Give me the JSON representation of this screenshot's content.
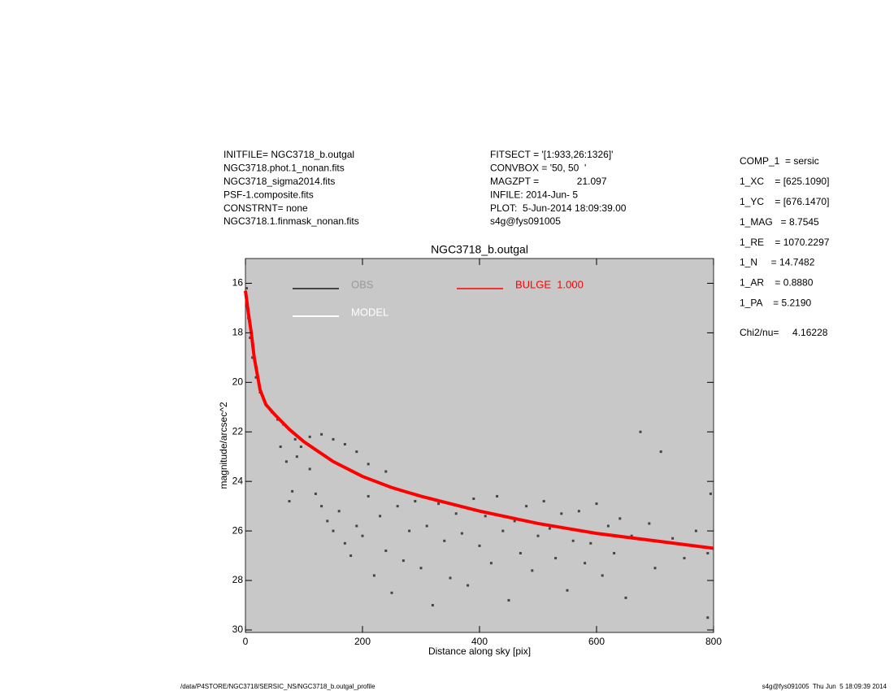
{
  "header": {
    "left": [
      "INITFILE= NGC3718_b.outgal",
      "NGC3718.phot.1_nonan.fits",
      "NGC3718_sigma2014.fits",
      "PSF-1.composite.fits",
      "CONSTRNT= none",
      "NGC3718.1.finmask_nonan.fits"
    ],
    "middle": [
      "FITSECT = '[1:933,26:1326]'",
      "CONVBOX = '50, 50  '",
      "MAGZPT =              21.097",
      "INFILE: 2014-Jun- 5",
      "PLOT:  5-Jun-2014 18:09:39.00",
      "s4g@fys091005"
    ],
    "right": [
      "COMP_1  = sersic",
      "1_XC    = [625.1090]",
      "1_YC    = [676.1470]",
      "1_MAG   = 8.7545",
      "1_RE    = 1070.2297",
      "1_N     = 14.7482",
      "1_AR    = 0.8880",
      "1_PA    = 5.2190"
    ],
    "chi2": "Chi2/nu=     4.16228"
  },
  "footer": {
    "left": "/data/P4STORE/NGC3718/SERSIC_NS/NGC3718_b.outgal_profile",
    "right": "s4g@fys091005  Thu Jun  5 18:09:39 2014"
  },
  "chart_data": {
    "type": "scatter",
    "title": "NGC3718_b.outgal",
    "x_label": "Distance along sky [pix]",
    "y_label": "magnitude/arcsec^2",
    "xlim": [
      0,
      800
    ],
    "ylim": [
      15,
      30.1
    ],
    "y_inverted": true,
    "xticks": [
      0,
      200,
      400,
      600,
      800
    ],
    "yticks": [
      16,
      18,
      20,
      22,
      24,
      26,
      28,
      30
    ],
    "background": "#c8c8c8",
    "series": [
      {
        "name": "OBS",
        "color": "#444444",
        "legend_color": "#999999",
        "kind": "points",
        "x": [
          2,
          3,
          5,
          8,
          12,
          18,
          25,
          35,
          45,
          55,
          65,
          75,
          85,
          95,
          110,
          130,
          150,
          170,
          190,
          210,
          240,
          110,
          120,
          130,
          140,
          150,
          160,
          170,
          180,
          190,
          200,
          210,
          220,
          230,
          240,
          250,
          260,
          270,
          280,
          290,
          300,
          310,
          320,
          330,
          340,
          350,
          360,
          370,
          380,
          390,
          400,
          410,
          420,
          430,
          440,
          450,
          460,
          470,
          480,
          490,
          500,
          510,
          520,
          530,
          540,
          550,
          560,
          570,
          580,
          590,
          600,
          610,
          620,
          630,
          640,
          650,
          660,
          675,
          690,
          700,
          710,
          730,
          750,
          770,
          790,
          795,
          790,
          60,
          70,
          80,
          75,
          88
        ],
        "values": [
          16.2,
          16.8,
          17.4,
          18.2,
          19,
          19.8,
          20.4,
          20.9,
          21.2,
          21.5,
          21.7,
          21.9,
          22.3,
          22.6,
          22.2,
          22.1,
          22.3,
          22.5,
          22.8,
          23.3,
          23.6,
          23.5,
          24.5,
          25,
          25.6,
          26,
          25.2,
          26.5,
          27,
          25.8,
          26.2,
          24.6,
          27.8,
          25.4,
          26.8,
          28.5,
          25,
          27.2,
          26,
          24.8,
          27.5,
          25.8,
          29,
          24.9,
          26.4,
          27.9,
          25.3,
          26.1,
          28.2,
          24.7,
          26.6,
          25.4,
          27.3,
          24.6,
          26,
          28.8,
          25.6,
          26.9,
          25,
          27.6,
          26.2,
          24.8,
          25.9,
          27.1,
          25.3,
          28.4,
          26.4,
          25.2,
          27.3,
          26.5,
          24.9,
          27.8,
          25.8,
          26.9,
          25.5,
          28.7,
          26.2,
          22,
          25.7,
          27.5,
          22.8,
          26.3,
          27.1,
          26,
          26.9,
          24.5,
          29.5,
          22.6,
          23.2,
          24.4,
          24.8,
          23
        ]
      },
      {
        "name": "MODEL",
        "color": "#ffffff",
        "kind": "legend"
      },
      {
        "name": "BULGE  1.000",
        "color": "#ff0000",
        "kind": "line",
        "x": [
          0,
          5,
          10,
          15,
          25,
          35,
          50,
          75,
          100,
          150,
          200,
          250,
          300,
          350,
          400,
          450,
          500,
          550,
          600,
          650,
          700,
          750,
          800
        ],
        "values": [
          16.3,
          17.2,
          18,
          19,
          20.3,
          20.9,
          21.3,
          21.9,
          22.4,
          23.2,
          23.8,
          24.25,
          24.6,
          24.9,
          25.2,
          25.45,
          25.7,
          25.9,
          26.1,
          26.25,
          26.4,
          26.55,
          26.7
        ]
      }
    ]
  }
}
